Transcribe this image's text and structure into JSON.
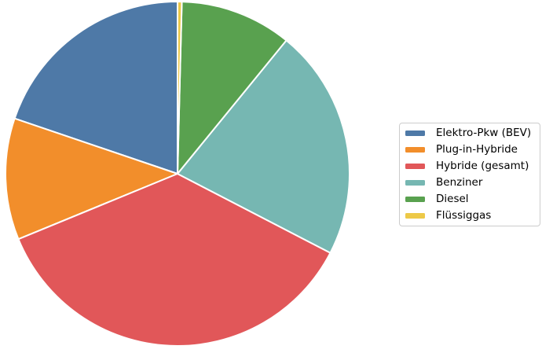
{
  "chart_data": {
    "type": "pie",
    "title": "",
    "labels": [
      "Elektro-Pkw (BEV)",
      "Plug-in-Hybride",
      "Hybride (gesamt)",
      "Benziner",
      "Diesel",
      "Flüssiggas"
    ],
    "values_percent": [
      19.8,
      11.4,
      36.2,
      21.7,
      10.5,
      0.4
    ],
    "colors": [
      "#4e79a7",
      "#f28e2b",
      "#e15759",
      "#76b7b2",
      "#59a14f",
      "#edc948"
    ],
    "start_angle_deg": 90,
    "direction": "counterclockwise",
    "wedge_edge_color": "#ffffff",
    "legend": {
      "position": "center right",
      "border_color": "#cccccc",
      "background": "#ffffff",
      "text_color": "#000000"
    }
  }
}
